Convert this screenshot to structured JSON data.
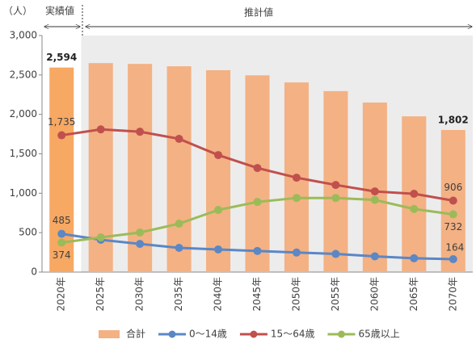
{
  "chart_data": {
    "type": "bar-line",
    "y_unit_label": "（人）",
    "annotations": [
      "実績値",
      "推計値"
    ],
    "categories": [
      "2020年",
      "2025年",
      "2030年",
      "2035年",
      "2040年",
      "2045年",
      "2050年",
      "2055年",
      "2060年",
      "2065年",
      "2070年"
    ],
    "ylim": [
      0,
      3000
    ],
    "yticks": [
      0,
      500,
      {
        "value": 1000,
        "label": "1,000"
      },
      {
        "value": 1500,
        "label": "1,500"
      },
      {
        "value": 2000,
        "label": "2,000"
      },
      {
        "value": 2500,
        "label": "2,500"
      },
      {
        "value": 3000,
        "label": "3,000"
      }
    ],
    "shade_color": "#ececec",
    "series": [
      {
        "name": "合計",
        "type": "bar",
        "color": "#f4b183",
        "colors": [
          "#f7a863",
          "#f4b183",
          "#f4b183",
          "#f4b183",
          "#f4b183",
          "#f4b183",
          "#f4b183",
          "#f4b183",
          "#f4b183",
          "#f4b183",
          "#f4b183"
        ],
        "values": [
          2594,
          2650,
          2640,
          2610,
          2560,
          2495,
          2405,
          2295,
          2150,
          1975,
          1802
        ],
        "value_labels": [
          "2,594",
          null,
          null,
          null,
          null,
          null,
          null,
          null,
          null,
          null,
          "1,802"
        ]
      },
      {
        "name": "0～14歳",
        "type": "line",
        "color": "#5b87c5",
        "values": [
          485,
          410,
          357,
          307,
          287,
          268,
          248,
          230,
          200,
          175,
          164
        ],
        "value_labels": [
          "485",
          null,
          null,
          null,
          null,
          null,
          null,
          null,
          null,
          null,
          "164"
        ]
      },
      {
        "name": "15～64歳",
        "type": "line",
        "color": "#c0504d",
        "values": [
          1735,
          1810,
          1780,
          1690,
          1484,
          1320,
          1197,
          1105,
          1023,
          993,
          906
        ],
        "value_labels": [
          "1,735",
          null,
          null,
          null,
          null,
          null,
          null,
          null,
          null,
          null,
          "906"
        ]
      },
      {
        "name": "65歳以上",
        "type": "line",
        "color": "#9bbb59",
        "values": [
          374,
          440,
          502,
          614,
          788,
          890,
          940,
          940,
          915,
          800,
          732
        ],
        "value_labels": [
          "374",
          null,
          null,
          null,
          null,
          null,
          null,
          null,
          null,
          null,
          "732"
        ]
      }
    ]
  }
}
